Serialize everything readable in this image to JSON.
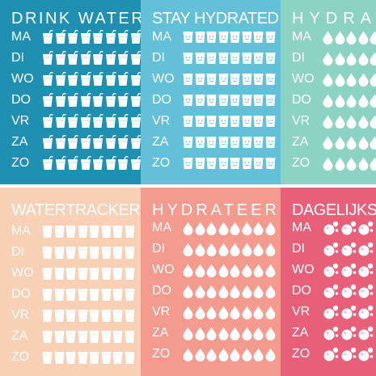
{
  "colors": {
    "drink_water": "#1f8fb2",
    "stay_hydrated": "#63c0d8",
    "hydrate": "#8dd3c4",
    "watertracker": "#f8d0b6",
    "hydrateer": "#f49a8e",
    "dagelijkse": "#e85f7a"
  },
  "panels": [
    {
      "title": "DRINK WATER",
      "icon": "glass-straw-icon",
      "days": [
        "MA",
        "DI",
        "WO",
        "DO",
        "VR",
        "ZA",
        "ZO"
      ]
    },
    {
      "title": "STAY HYDRATED",
      "icon": "smiley-glass-icon",
      "days": [
        "MA",
        "DI",
        "WO",
        "DO",
        "VR",
        "ZA",
        "ZO"
      ]
    },
    {
      "title": "HYDRATE",
      "icon": "water-drop-icon",
      "days": [
        "MA",
        "DI",
        "WO",
        "DO",
        "VR",
        "ZA",
        "ZO"
      ]
    },
    {
      "title": "WATERTRACKER",
      "icon": "glass-icon",
      "days": [
        "MA",
        "DI",
        "WO",
        "DO",
        "VR",
        "ZA",
        "ZO"
      ]
    },
    {
      "title": "HYDRATEER",
      "icon": "water-drop-icon",
      "days": [
        "MA",
        "DI",
        "WO",
        "DO",
        "VR",
        "ZA",
        "ZO"
      ]
    },
    {
      "title": "DAGELIJKSE",
      "icon": "bubbles-icon",
      "days": [
        "MA",
        "DI",
        "WO",
        "DO",
        "VR",
        "ZA",
        "ZO"
      ]
    }
  ]
}
